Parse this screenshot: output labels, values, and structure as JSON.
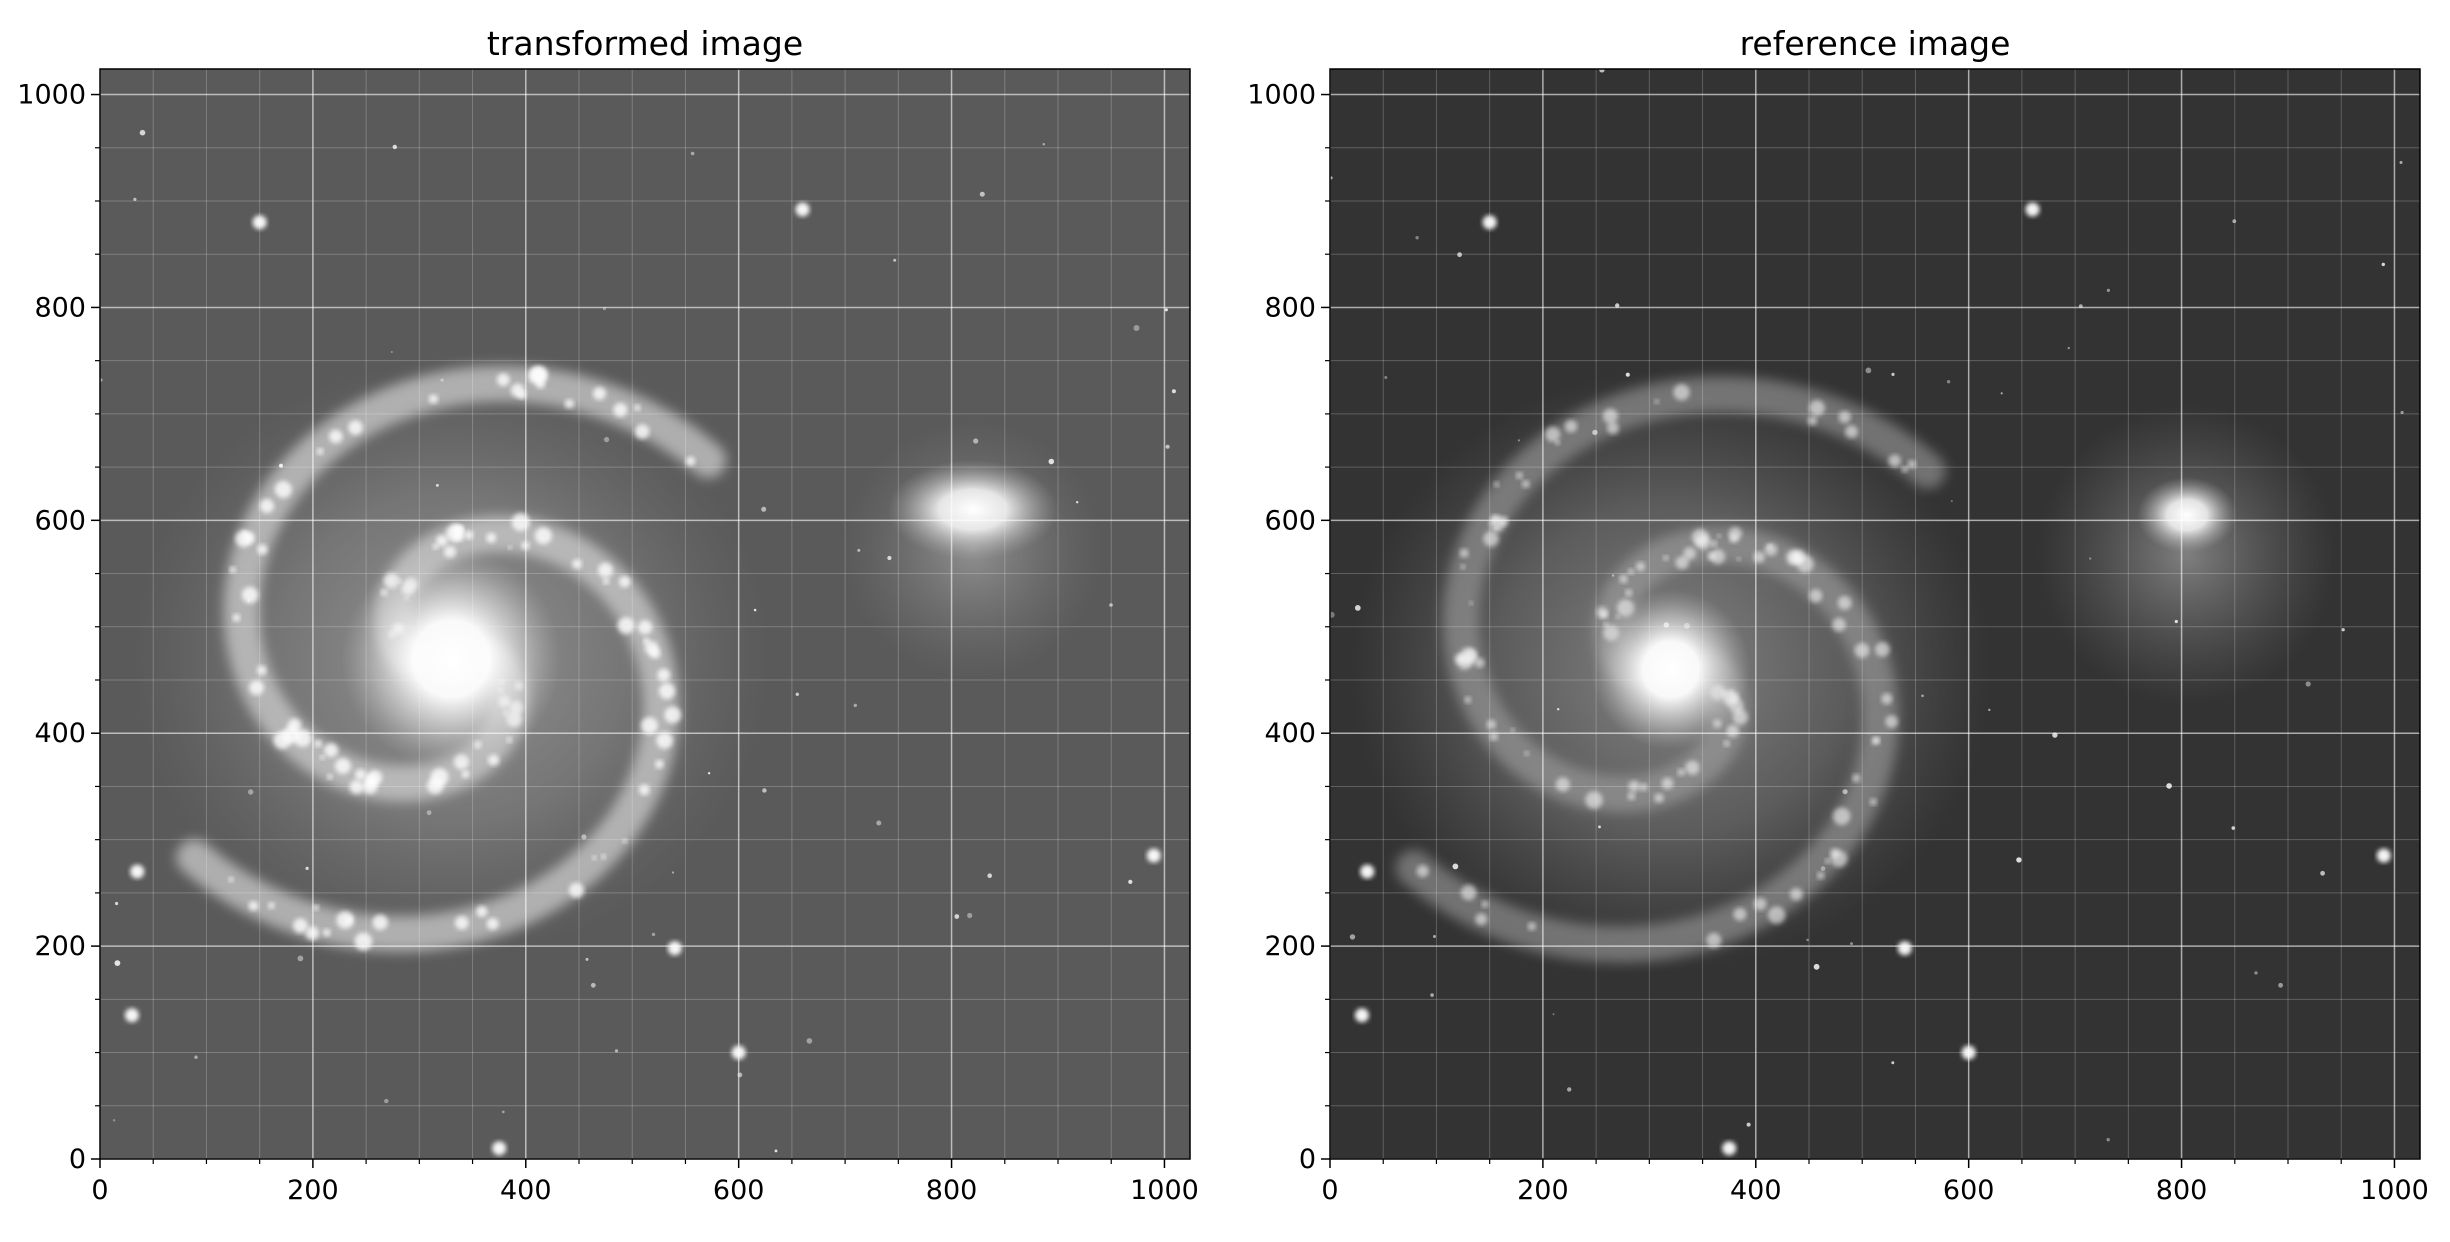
{
  "chart_data": [
    {
      "type": "heatmap",
      "title": "transformed image",
      "xlabel": "",
      "ylabel": "",
      "xlim": [
        0,
        1024
      ],
      "ylim": [
        0,
        1024
      ],
      "xticks": [
        0,
        200,
        400,
        600,
        800,
        1000
      ],
      "yticks": [
        0,
        200,
        400,
        600,
        800,
        1000
      ],
      "grid": "on (major and minor)",
      "colormap": "gray",
      "background": "#5a5a5a",
      "features": {
        "galaxy_core": {
          "x": 330,
          "y": 470
        },
        "companion": {
          "x": 820,
          "y": 610
        },
        "stars": [
          {
            "x": 150,
            "y": 880
          },
          {
            "x": 660,
            "y": 892
          },
          {
            "x": 540,
            "y": 198
          },
          {
            "x": 600,
            "y": 100
          },
          {
            "x": 375,
            "y": 10
          },
          {
            "x": 30,
            "y": 135
          },
          {
            "x": 35,
            "y": 270
          },
          {
            "x": 990,
            "y": 285
          }
        ]
      }
    },
    {
      "type": "heatmap",
      "title": "reference image",
      "xlabel": "",
      "ylabel": "",
      "xlim": [
        0,
        1024
      ],
      "ylim": [
        0,
        1024
      ],
      "xticks": [
        0,
        200,
        400,
        600,
        800,
        1000
      ],
      "yticks": [
        0,
        200,
        400,
        600,
        800,
        1000
      ],
      "grid": "on (major and minor)",
      "colormap": "gray",
      "background": "#333333",
      "features": {
        "galaxy_core": {
          "x": 320,
          "y": 460
        },
        "companion": {
          "x": 805,
          "y": 605
        },
        "stars": [
          {
            "x": 150,
            "y": 880
          },
          {
            "x": 660,
            "y": 892
          },
          {
            "x": 540,
            "y": 198
          },
          {
            "x": 600,
            "y": 100
          },
          {
            "x": 375,
            "y": 10
          },
          {
            "x": 30,
            "y": 135
          },
          {
            "x": 35,
            "y": 270
          },
          {
            "x": 990,
            "y": 285
          }
        ]
      }
    }
  ]
}
